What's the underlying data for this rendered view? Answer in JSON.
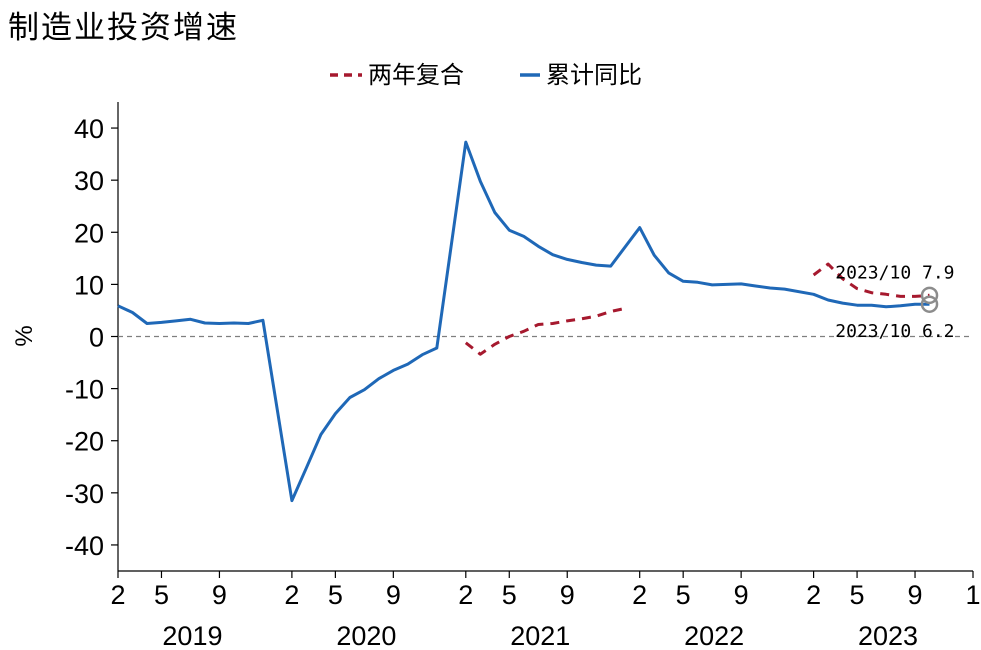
{
  "title": "制造业投资增速",
  "chart_data": {
    "type": "line",
    "ylabel": "%",
    "ylim": [
      -45,
      45
    ],
    "yticks": [
      40,
      30,
      20,
      10,
      0,
      -10,
      -20,
      -30,
      -40
    ],
    "ytick_labels": [
      "40",
      "30",
      "20",
      "10",
      "0",
      "-10",
      "-20",
      "-30",
      "-40"
    ],
    "x_range": [
      "2019-02",
      "2024-01"
    ],
    "xticks": [
      "2019-02",
      "2019-05",
      "2019-09",
      "2020-02",
      "2020-05",
      "2020-09",
      "2021-02",
      "2021-05",
      "2021-09",
      "2022-02",
      "2022-05",
      "2022-09",
      "2023-02",
      "2023-05",
      "2023-09",
      "2024-01"
    ],
    "xtick_labels": [
      "2",
      "5",
      "9",
      "2",
      "5",
      "9",
      "2",
      "5",
      "9",
      "2",
      "5",
      "9",
      "2",
      "5",
      "9",
      "1"
    ],
    "years": [
      {
        "label": "2019",
        "center": "2019-07"
      },
      {
        "label": "2020",
        "center": "2020-07"
      },
      {
        "label": "2021",
        "center": "2021-07"
      },
      {
        "label": "2022",
        "center": "2022-07"
      },
      {
        "label": "2023",
        "center": "2023-07"
      }
    ],
    "zero_line": true,
    "legend": "top-center",
    "series": [
      {
        "name": "两年复合",
        "color": "#a6192e",
        "style": "dashed",
        "segments": [
          [
            [
              "2021-02",
              -1.2
            ],
            [
              "2021-03",
              -3.4
            ],
            [
              "2021-04",
              -1.5
            ],
            [
              "2021-05",
              0.0
            ],
            [
              "2021-06",
              1.0
            ],
            [
              "2021-07",
              2.3
            ],
            [
              "2021-08",
              2.5
            ],
            [
              "2021-09",
              3.0
            ],
            [
              "2021-10",
              3.4
            ],
            [
              "2021-11",
              3.9
            ],
            [
              "2021-12",
              4.8
            ],
            [
              "2022-01",
              5.4
            ]
          ],
          [
            [
              "2023-02",
              11.8
            ],
            [
              "2023-03",
              13.9
            ],
            [
              "2023-04",
              11.1
            ],
            [
              "2023-05",
              9.2
            ],
            [
              "2023-06",
              8.4
            ],
            [
              "2023-07",
              8.1
            ],
            [
              "2023-08",
              7.7
            ],
            [
              "2023-09",
              7.7
            ],
            [
              "2023-10",
              7.9
            ]
          ]
        ]
      },
      {
        "name": "累计同比",
        "color": "#1f68b7",
        "style": "solid",
        "segments": [
          [
            [
              "2019-02",
              5.9
            ],
            [
              "2019-03",
              4.6
            ],
            [
              "2019-04",
              2.5
            ],
            [
              "2019-05",
              2.7
            ],
            [
              "2019-06",
              3.0
            ],
            [
              "2019-07",
              3.3
            ],
            [
              "2019-08",
              2.6
            ],
            [
              "2019-09",
              2.5
            ],
            [
              "2019-10",
              2.6
            ],
            [
              "2019-11",
              2.5
            ],
            [
              "2019-12",
              3.1
            ],
            [
              "2020-02",
              -31.5
            ],
            [
              "2020-03",
              -25.2
            ],
            [
              "2020-04",
              -18.8
            ],
            [
              "2020-05",
              -14.8
            ],
            [
              "2020-06",
              -11.7
            ],
            [
              "2020-07",
              -10.2
            ],
            [
              "2020-08",
              -8.1
            ],
            [
              "2020-09",
              -6.5
            ],
            [
              "2020-10",
              -5.3
            ],
            [
              "2020-11",
              -3.5
            ],
            [
              "2020-12",
              -2.2
            ],
            [
              "2021-02",
              37.3
            ],
            [
              "2021-03",
              29.8
            ],
            [
              "2021-04",
              23.8
            ],
            [
              "2021-05",
              20.4
            ],
            [
              "2021-06",
              19.2
            ],
            [
              "2021-07",
              17.3
            ],
            [
              "2021-08",
              15.7
            ],
            [
              "2021-09",
              14.8
            ],
            [
              "2021-10",
              14.2
            ],
            [
              "2021-11",
              13.7
            ],
            [
              "2021-12",
              13.5
            ],
            [
              "2022-02",
              20.9
            ],
            [
              "2022-03",
              15.6
            ],
            [
              "2022-04",
              12.2
            ],
            [
              "2022-05",
              10.6
            ],
            [
              "2022-06",
              10.4
            ],
            [
              "2022-07",
              9.9
            ],
            [
              "2022-08",
              10.0
            ],
            [
              "2022-09",
              10.1
            ],
            [
              "2022-10",
              9.7
            ],
            [
              "2022-11",
              9.3
            ],
            [
              "2022-12",
              9.1
            ],
            [
              "2023-02",
              8.1
            ],
            [
              "2023-03",
              7.0
            ],
            [
              "2023-04",
              6.4
            ],
            [
              "2023-05",
              6.0
            ],
            [
              "2023-06",
              6.0
            ],
            [
              "2023-07",
              5.7
            ],
            [
              "2023-08",
              5.9
            ],
            [
              "2023-09",
              6.2
            ],
            [
              "2023-10",
              6.2
            ]
          ]
        ]
      }
    ],
    "annotations": [
      {
        "text": "2023/10  7.9",
        "x": "2023-10",
        "y": 7.9,
        "position": "above-left"
      },
      {
        "text": "2023/10  6.2",
        "x": "2023-10",
        "y": 6.2,
        "position": "below-left"
      }
    ]
  }
}
